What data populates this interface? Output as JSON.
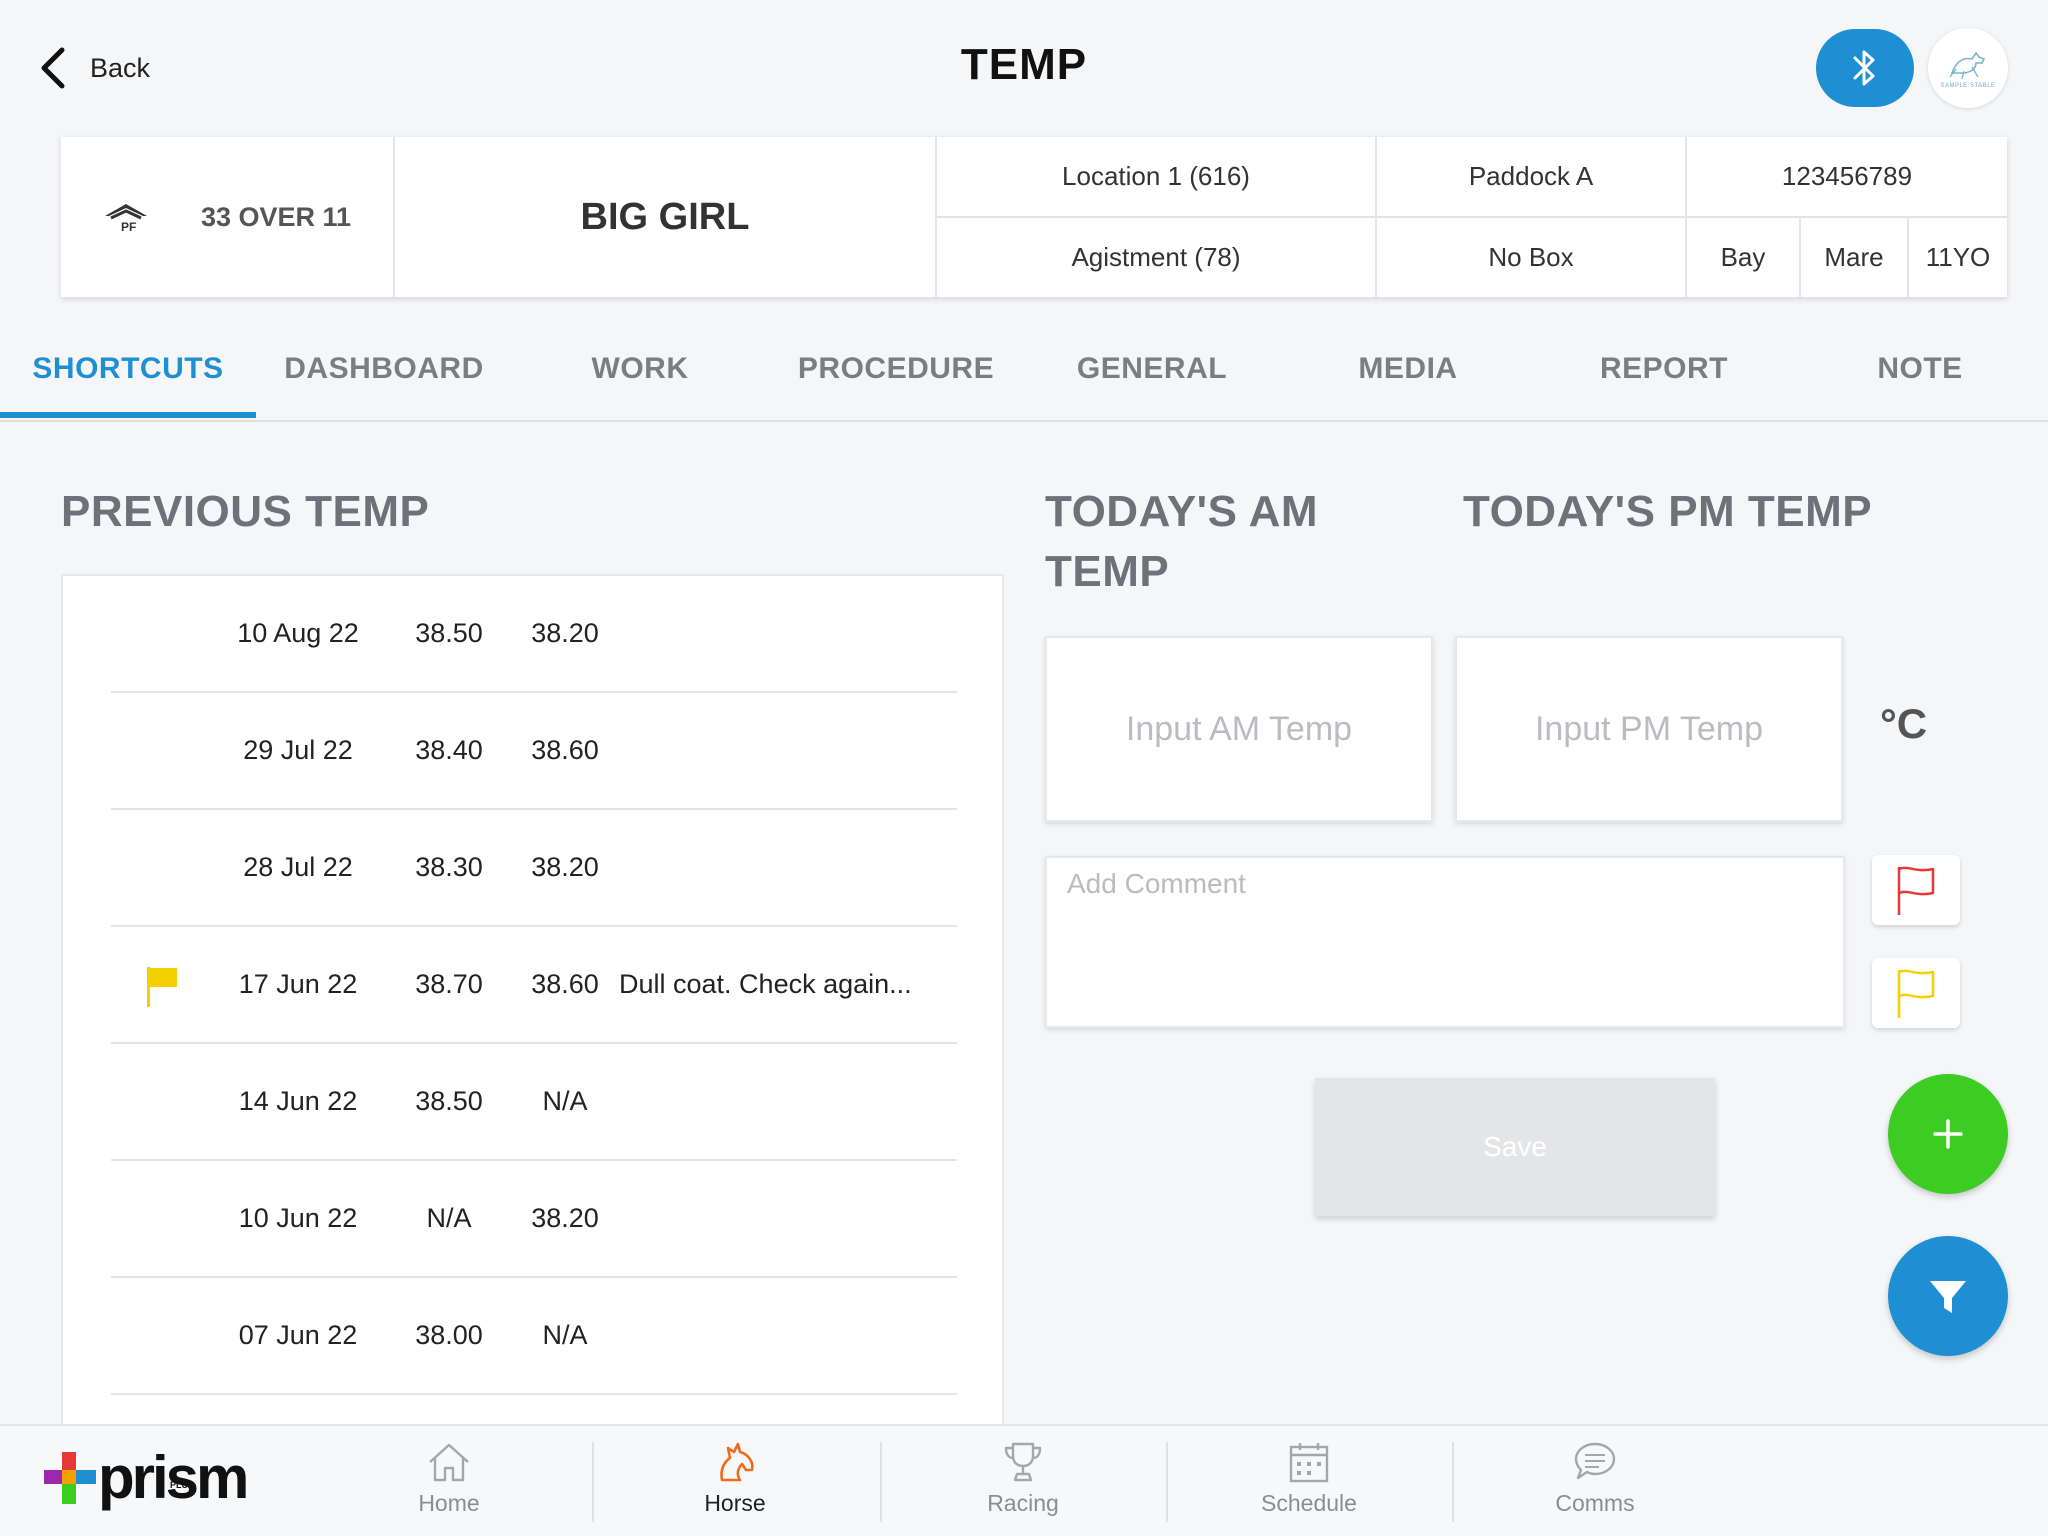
{
  "header": {
    "back_label": "Back",
    "title": "TEMP",
    "stable_logo_text": "SAMPLE STABLE"
  },
  "horse": {
    "trainer": "33 OVER 11",
    "name": "BIG GIRL",
    "location": "Location 1 (616)",
    "paddock": "Paddock A",
    "id_number": "123456789",
    "agistment": "Agistment (78)",
    "box": "No Box",
    "colour": "Bay",
    "sex": "Mare",
    "age": "11YO"
  },
  "tabs": [
    {
      "label": "SHORTCUTS",
      "active": true
    },
    {
      "label": "DASHBOARD",
      "active": false
    },
    {
      "label": "WORK",
      "active": false
    },
    {
      "label": "PROCEDURE",
      "active": false
    },
    {
      "label": "GENERAL",
      "active": false
    },
    {
      "label": "MEDIA",
      "active": false
    },
    {
      "label": "REPORT",
      "active": false
    },
    {
      "label": "NOTE",
      "active": false
    }
  ],
  "previous": {
    "heading": "PREVIOUS TEMP",
    "rows": [
      {
        "date": "10 Aug 22",
        "am": "38.50",
        "pm": "38.20",
        "comment": "",
        "flag": ""
      },
      {
        "date": "29 Jul 22",
        "am": "38.40",
        "pm": "38.60",
        "comment": "",
        "flag": ""
      },
      {
        "date": "28 Jul 22",
        "am": "38.30",
        "pm": "38.20",
        "comment": "",
        "flag": ""
      },
      {
        "date": "17 Jun 22",
        "am": "38.70",
        "pm": "38.60",
        "comment": "Dull coat. Check again...",
        "flag": "yellow"
      },
      {
        "date": "14 Jun 22",
        "am": "38.50",
        "pm": "N/A",
        "comment": "",
        "flag": ""
      },
      {
        "date": "10 Jun 22",
        "am": "N/A",
        "pm": "38.20",
        "comment": "",
        "flag": ""
      },
      {
        "date": "07 Jun 22",
        "am": "38.00",
        "pm": "N/A",
        "comment": "",
        "flag": ""
      }
    ]
  },
  "today": {
    "am_heading": "TODAY'S AM TEMP",
    "pm_heading": "TODAY'S PM TEMP",
    "am_placeholder": "Input AM Temp",
    "pm_placeholder": "Input PM Temp",
    "unit": "°C",
    "comment_placeholder": "Add Comment",
    "save_label": "Save"
  },
  "colors": {
    "accent": "#1f8fd4",
    "add": "#3dcc21",
    "flag_red": "#e53935",
    "flag_yellow": "#f5d000"
  },
  "nav": {
    "brand": "prism",
    "brand_sub": "PLUS",
    "items": [
      {
        "label": "Home",
        "icon": "home-icon",
        "active": false
      },
      {
        "label": "Horse",
        "icon": "horse-icon",
        "active": true
      },
      {
        "label": "Racing",
        "icon": "trophy-icon",
        "active": false
      },
      {
        "label": "Schedule",
        "icon": "calendar-icon",
        "active": false
      },
      {
        "label": "Comms",
        "icon": "chat-icon",
        "active": false
      }
    ]
  }
}
